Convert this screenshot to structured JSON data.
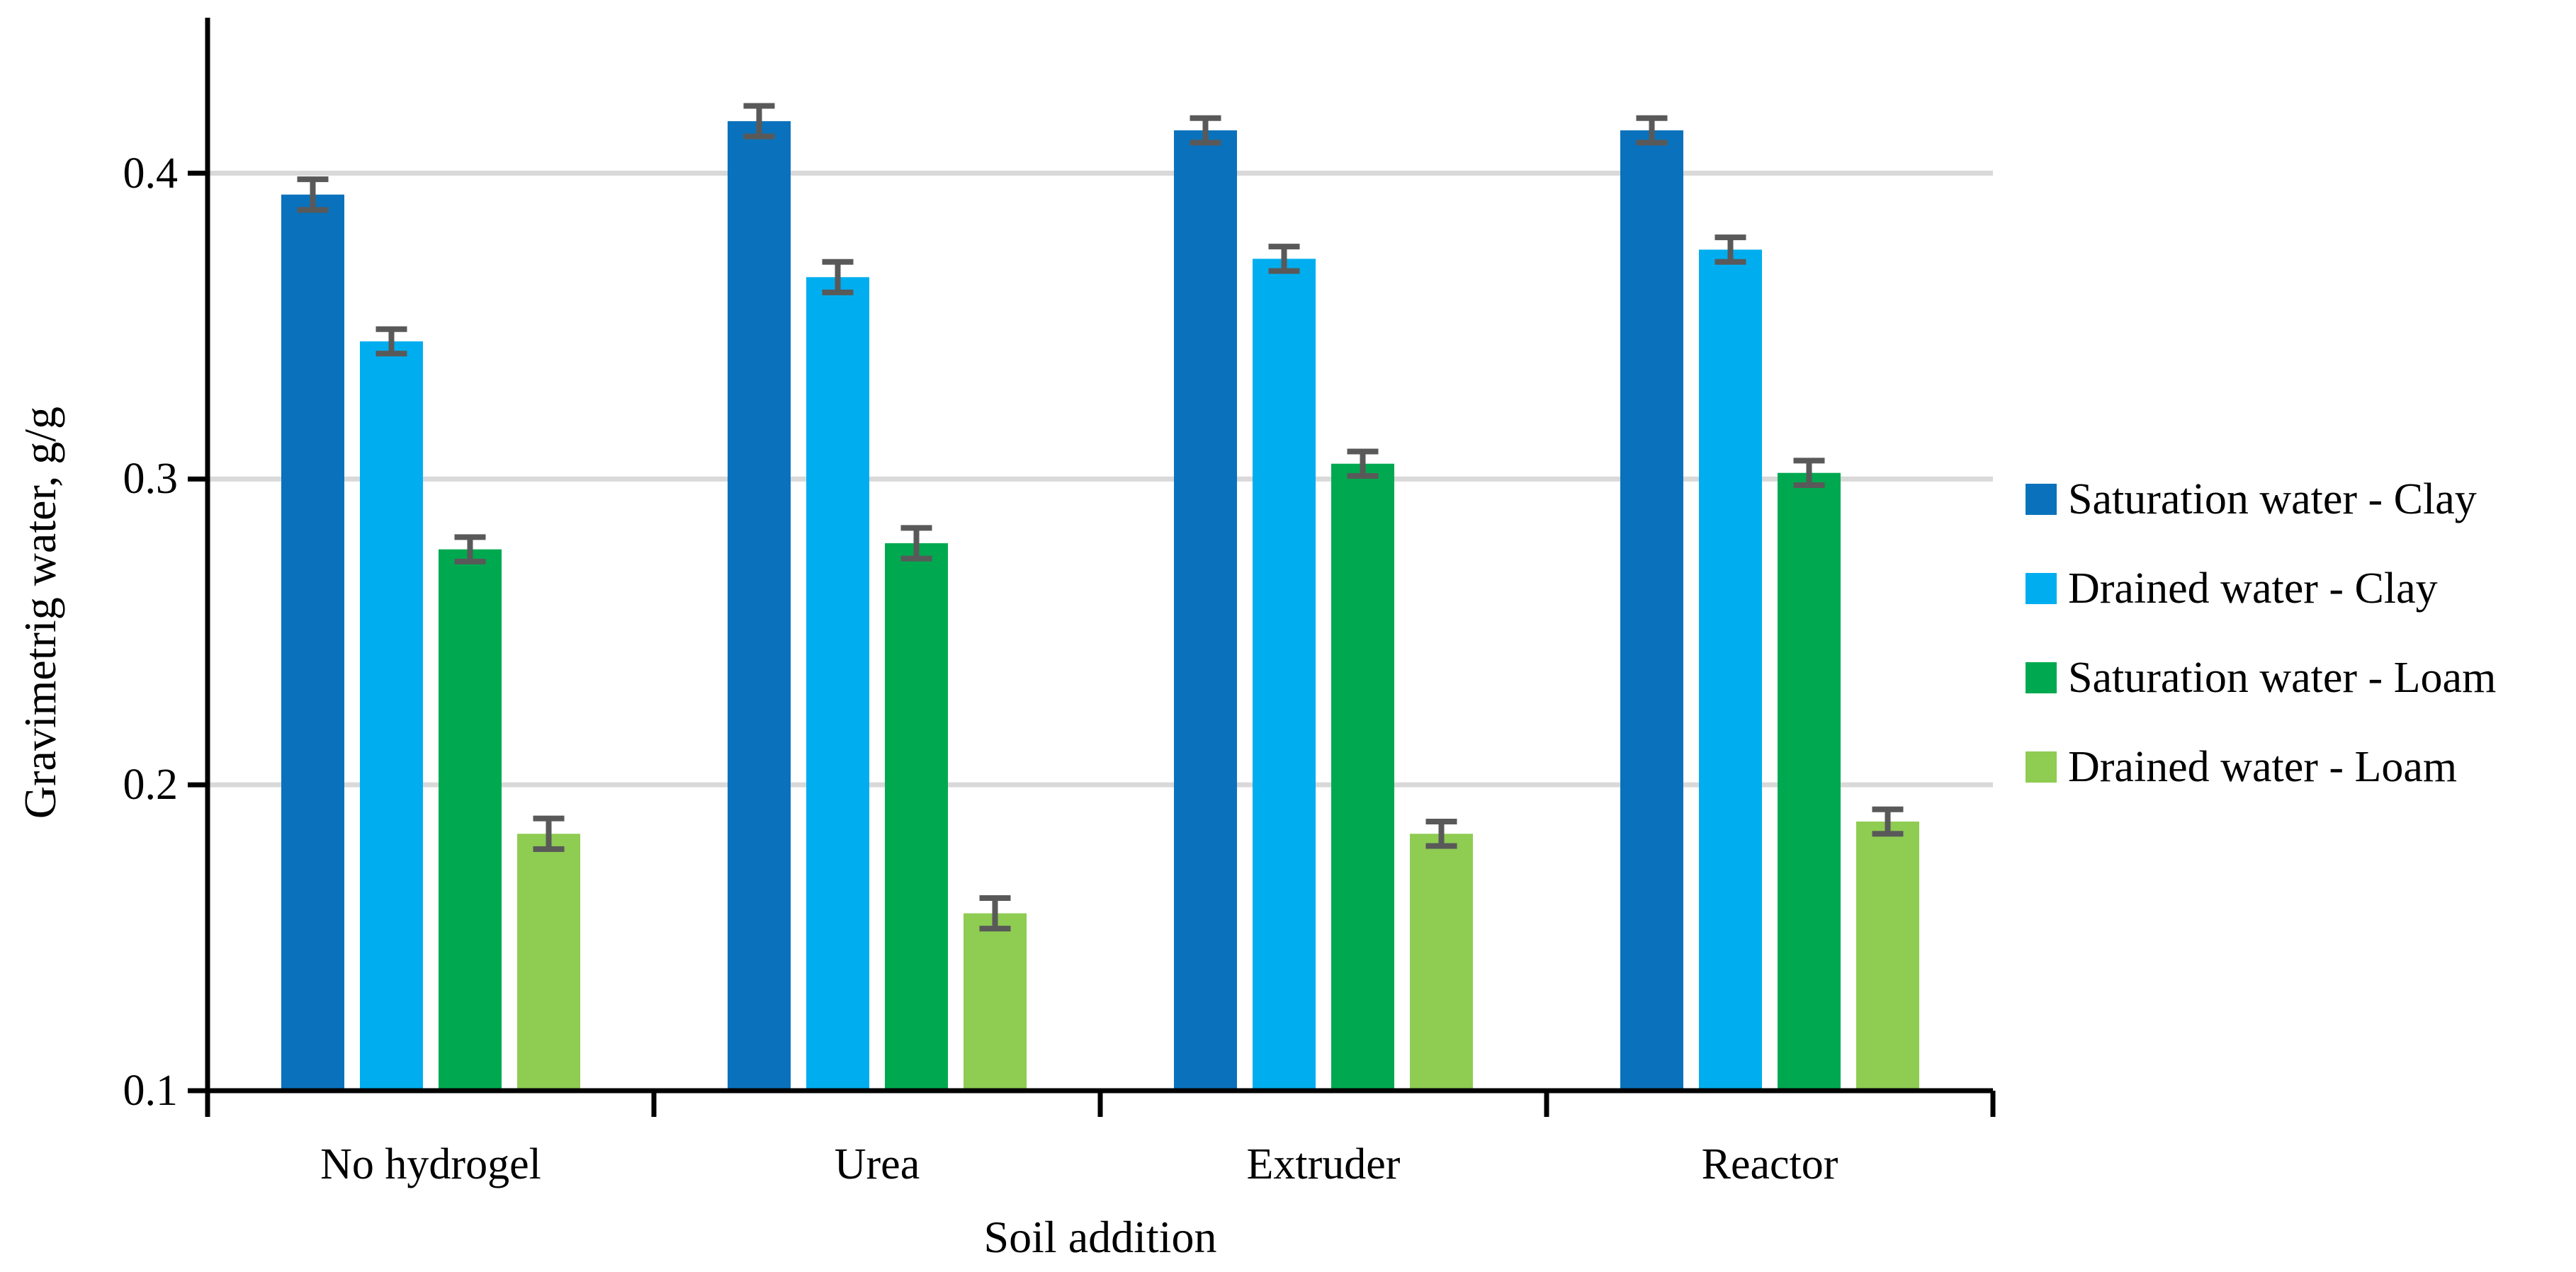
{
  "chart_data": {
    "type": "bar",
    "title": "",
    "xlabel": "Soil addition",
    "ylabel": "Gravimetrig water, g/g",
    "categories": [
      "No hydrogel",
      "Urea",
      "Extruder",
      "Reactor"
    ],
    "series": [
      {
        "name": "Saturation water - Clay",
        "color": "#0A72BC",
        "values": [
          0.393,
          0.417,
          0.414,
          0.414
        ],
        "errors": [
          0.005,
          0.005,
          0.004,
          0.004
        ]
      },
      {
        "name": "Drained water - Clay",
        "color": "#00AEEF",
        "values": [
          0.345,
          0.366,
          0.372,
          0.375
        ],
        "errors": [
          0.004,
          0.005,
          0.004,
          0.004
        ]
      },
      {
        "name": "Saturation water - Loam",
        "color": "#00A950",
        "values": [
          0.277,
          0.279,
          0.305,
          0.302
        ],
        "errors": [
          0.004,
          0.005,
          0.004,
          0.004
        ]
      },
      {
        "name": "Drained water - Loam",
        "color": "#8ECC52",
        "values": [
          0.184,
          0.158,
          0.184,
          0.188
        ],
        "errors": [
          0.005,
          0.005,
          0.004,
          0.004
        ]
      }
    ],
    "yticks": [
      0.1,
      0.2,
      0.3,
      0.4
    ],
    "ytick_format_decimals": 1,
    "ylim": [
      0.1,
      0.451
    ],
    "grid": "horizontal",
    "gridline_color": "#D9D9D9",
    "axis_color": "#000000",
    "error_bar_color": "#595959",
    "legend_position": "right"
  }
}
